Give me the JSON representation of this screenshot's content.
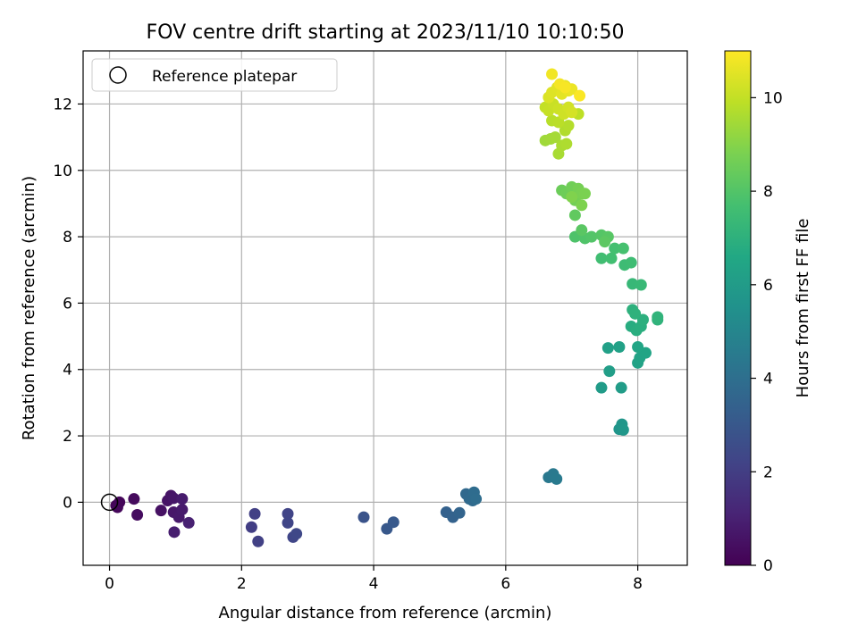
{
  "chart_data": {
    "type": "scatter",
    "title": "FOV centre drift starting at 2023/11/10 10:10:50",
    "xlabel": "Angular distance from reference (arcmin)",
    "ylabel": "Rotation from reference (arcmin)",
    "xlim": [
      -0.4,
      8.75
    ],
    "ylim": [
      -1.9,
      13.6
    ],
    "xticks": [
      0,
      2,
      4,
      6,
      8
    ],
    "yticks": [
      0,
      2,
      4,
      6,
      8,
      10,
      12
    ],
    "grid": true,
    "legend": {
      "placement": "top-left",
      "entries": [
        "Reference platepar"
      ]
    },
    "reference_point": {
      "x": 0.0,
      "y": 0.0
    },
    "colorbar": {
      "label": "Hours from first FF file",
      "range": [
        0,
        11
      ],
      "ticks": [
        0,
        2,
        4,
        6,
        8,
        10
      ],
      "colormap": "viridis"
    },
    "points": [
      {
        "x": 0.1,
        "y": -0.1,
        "c": 0.1
      },
      {
        "x": 0.15,
        "y": 0.0,
        "c": 0.15
      },
      {
        "x": 0.12,
        "y": -0.15,
        "c": 0.2
      },
      {
        "x": 0.37,
        "y": 0.1,
        "c": 0.3
      },
      {
        "x": 0.42,
        "y": -0.38,
        "c": 0.35
      },
      {
        "x": 0.78,
        "y": -0.25,
        "c": 0.5
      },
      {
        "x": 0.88,
        "y": 0.05,
        "c": 0.55
      },
      {
        "x": 0.93,
        "y": 0.2,
        "c": 0.6
      },
      {
        "x": 0.97,
        "y": 0.12,
        "c": 0.65
      },
      {
        "x": 0.97,
        "y": -0.3,
        "c": 0.7
      },
      {
        "x": 1.05,
        "y": -0.45,
        "c": 0.75
      },
      {
        "x": 1.1,
        "y": -0.22,
        "c": 0.8
      },
      {
        "x": 1.1,
        "y": 0.1,
        "c": 0.82
      },
      {
        "x": 0.98,
        "y": -0.9,
        "c": 0.9
      },
      {
        "x": 1.2,
        "y": -0.62,
        "c": 1.0
      },
      {
        "x": 2.15,
        "y": -0.75,
        "c": 2.0
      },
      {
        "x": 2.2,
        "y": -0.35,
        "c": 2.05
      },
      {
        "x": 2.25,
        "y": -1.18,
        "c": 2.1
      },
      {
        "x": 2.7,
        "y": -0.35,
        "c": 2.2
      },
      {
        "x": 2.7,
        "y": -0.62,
        "c": 2.25
      },
      {
        "x": 2.78,
        "y": -1.05,
        "c": 2.3
      },
      {
        "x": 2.83,
        "y": -0.95,
        "c": 2.35
      },
      {
        "x": 3.85,
        "y": -0.45,
        "c": 2.8
      },
      {
        "x": 4.2,
        "y": -0.8,
        "c": 3.0
      },
      {
        "x": 4.3,
        "y": -0.6,
        "c": 3.05
      },
      {
        "x": 5.1,
        "y": -0.3,
        "c": 3.4
      },
      {
        "x": 5.2,
        "y": -0.45,
        "c": 3.45
      },
      {
        "x": 5.3,
        "y": -0.32,
        "c": 3.5
      },
      {
        "x": 5.4,
        "y": 0.25,
        "c": 3.7
      },
      {
        "x": 5.45,
        "y": 0.1,
        "c": 3.75
      },
      {
        "x": 5.5,
        "y": 0.05,
        "c": 3.8
      },
      {
        "x": 5.52,
        "y": 0.3,
        "c": 3.85
      },
      {
        "x": 5.55,
        "y": 0.1,
        "c": 3.9
      },
      {
        "x": 6.65,
        "y": 0.75,
        "c": 4.4
      },
      {
        "x": 6.72,
        "y": 0.85,
        "c": 4.45
      },
      {
        "x": 6.77,
        "y": 0.7,
        "c": 4.5
      },
      {
        "x": 7.72,
        "y": 2.2,
        "c": 5.7
      },
      {
        "x": 7.76,
        "y": 2.35,
        "c": 5.75
      },
      {
        "x": 7.78,
        "y": 2.18,
        "c": 5.8
      },
      {
        "x": 7.45,
        "y": 3.45,
        "c": 6.0
      },
      {
        "x": 7.75,
        "y": 3.45,
        "c": 6.05
      },
      {
        "x": 7.57,
        "y": 3.95,
        "c": 6.1
      },
      {
        "x": 7.55,
        "y": 4.65,
        "c": 6.2
      },
      {
        "x": 7.72,
        "y": 4.68,
        "c": 6.25
      },
      {
        "x": 8.0,
        "y": 4.2,
        "c": 6.3
      },
      {
        "x": 8.03,
        "y": 4.35,
        "c": 6.35
      },
      {
        "x": 8.12,
        "y": 4.5,
        "c": 6.4
      },
      {
        "x": 8.0,
        "y": 4.68,
        "c": 6.45
      },
      {
        "x": 7.9,
        "y": 5.3,
        "c": 6.8
      },
      {
        "x": 7.98,
        "y": 5.18,
        "c": 6.85
      },
      {
        "x": 8.05,
        "y": 5.3,
        "c": 6.9
      },
      {
        "x": 8.08,
        "y": 5.5,
        "c": 6.95
      },
      {
        "x": 7.92,
        "y": 5.8,
        "c": 7.0
      },
      {
        "x": 7.96,
        "y": 5.68,
        "c": 7.05
      },
      {
        "x": 8.3,
        "y": 5.5,
        "c": 7.1
      },
      {
        "x": 8.3,
        "y": 5.58,
        "c": 7.12
      },
      {
        "x": 7.92,
        "y": 6.58,
        "c": 7.3
      },
      {
        "x": 8.05,
        "y": 6.55,
        "c": 7.35
      },
      {
        "x": 7.8,
        "y": 7.15,
        "c": 7.5
      },
      {
        "x": 7.9,
        "y": 7.22,
        "c": 7.55
      },
      {
        "x": 7.45,
        "y": 7.35,
        "c": 7.6
      },
      {
        "x": 7.6,
        "y": 7.35,
        "c": 7.65
      },
      {
        "x": 7.65,
        "y": 7.65,
        "c": 7.7
      },
      {
        "x": 7.78,
        "y": 7.65,
        "c": 7.75
      },
      {
        "x": 7.05,
        "y": 8.0,
        "c": 7.9
      },
      {
        "x": 7.2,
        "y": 7.95,
        "c": 7.95
      },
      {
        "x": 7.3,
        "y": 8.0,
        "c": 8.0
      },
      {
        "x": 7.45,
        "y": 8.05,
        "c": 8.05
      },
      {
        "x": 7.55,
        "y": 8.0,
        "c": 8.1
      },
      {
        "x": 7.15,
        "y": 8.2,
        "c": 8.15
      },
      {
        "x": 7.5,
        "y": 7.85,
        "c": 8.2
      },
      {
        "x": 7.05,
        "y": 8.65,
        "c": 8.3
      },
      {
        "x": 6.85,
        "y": 9.4,
        "c": 8.5
      },
      {
        "x": 6.92,
        "y": 9.3,
        "c": 8.55
      },
      {
        "x": 7.0,
        "y": 9.5,
        "c": 8.6
      },
      {
        "x": 7.05,
        "y": 9.1,
        "c": 8.65
      },
      {
        "x": 7.1,
        "y": 9.45,
        "c": 8.7
      },
      {
        "x": 7.15,
        "y": 9.3,
        "c": 8.75
      },
      {
        "x": 7.2,
        "y": 9.3,
        "c": 8.8
      },
      {
        "x": 7.15,
        "y": 8.95,
        "c": 8.85
      },
      {
        "x": 7.0,
        "y": 9.2,
        "c": 8.9
      },
      {
        "x": 6.6,
        "y": 10.9,
        "c": 9.4
      },
      {
        "x": 6.68,
        "y": 10.95,
        "c": 9.45
      },
      {
        "x": 6.75,
        "y": 11.0,
        "c": 9.5
      },
      {
        "x": 6.8,
        "y": 10.5,
        "c": 9.55
      },
      {
        "x": 6.85,
        "y": 10.75,
        "c": 9.6
      },
      {
        "x": 6.92,
        "y": 10.8,
        "c": 9.65
      },
      {
        "x": 6.9,
        "y": 11.2,
        "c": 9.7
      },
      {
        "x": 6.95,
        "y": 11.35,
        "c": 9.75
      },
      {
        "x": 6.7,
        "y": 11.5,
        "c": 9.8
      },
      {
        "x": 6.8,
        "y": 11.45,
        "c": 9.85
      },
      {
        "x": 7.1,
        "y": 11.7,
        "c": 9.9
      },
      {
        "x": 6.6,
        "y": 11.9,
        "c": 10.0
      },
      {
        "x": 6.65,
        "y": 11.8,
        "c": 10.05
      },
      {
        "x": 6.72,
        "y": 12.0,
        "c": 10.1
      },
      {
        "x": 6.8,
        "y": 11.85,
        "c": 10.15
      },
      {
        "x": 6.88,
        "y": 11.7,
        "c": 10.2
      },
      {
        "x": 6.95,
        "y": 11.9,
        "c": 10.25
      },
      {
        "x": 7.0,
        "y": 11.75,
        "c": 10.3
      },
      {
        "x": 6.65,
        "y": 12.2,
        "c": 10.4
      },
      {
        "x": 6.7,
        "y": 12.35,
        "c": 10.45
      },
      {
        "x": 6.78,
        "y": 12.5,
        "c": 10.5
      },
      {
        "x": 6.85,
        "y": 12.3,
        "c": 10.55
      },
      {
        "x": 6.9,
        "y": 12.55,
        "c": 10.6
      },
      {
        "x": 6.95,
        "y": 12.4,
        "c": 10.65
      },
      {
        "x": 7.0,
        "y": 12.45,
        "c": 10.7
      },
      {
        "x": 6.7,
        "y": 12.9,
        "c": 10.8
      },
      {
        "x": 6.82,
        "y": 12.6,
        "c": 10.85
      },
      {
        "x": 6.9,
        "y": 12.5,
        "c": 10.9
      },
      {
        "x": 7.12,
        "y": 12.25,
        "c": 10.95
      }
    ]
  }
}
